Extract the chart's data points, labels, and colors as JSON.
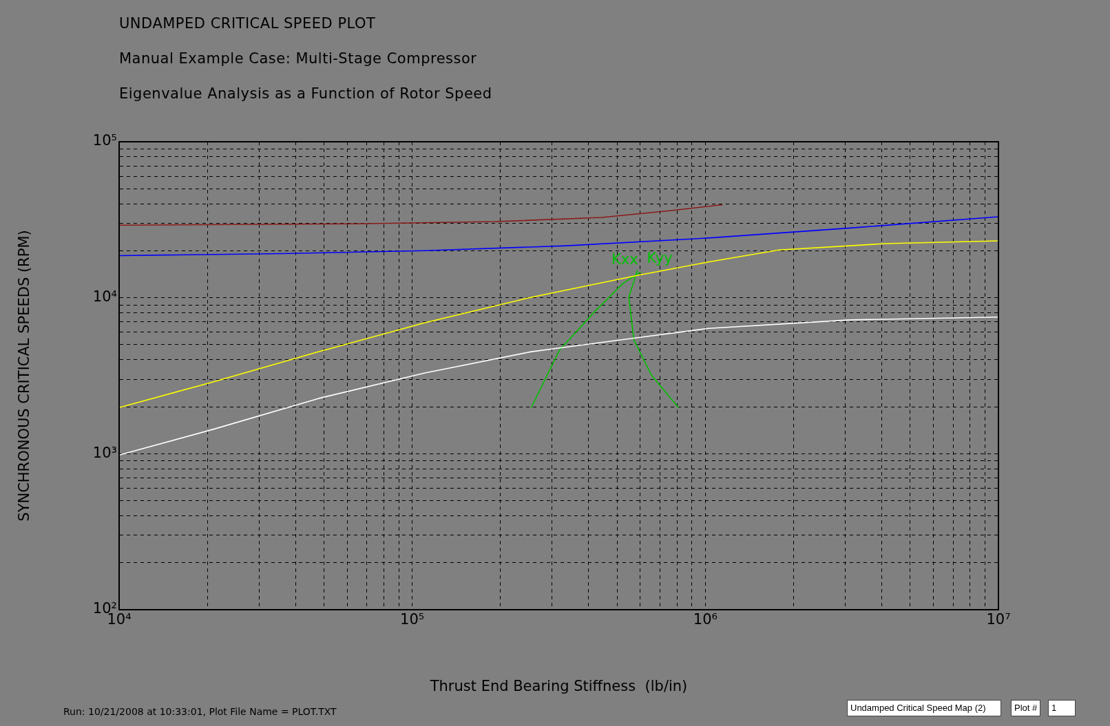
{
  "chart_data": {
    "type": "line",
    "title": "UNDAMPED CRITICAL SPEED PLOT",
    "subtitle": "Manual Example Case:  Multi-Stage Compressor\nEigenvalue Analysis as a Function of Rotor Speed",
    "xlabel": "Thrust End Bearing Stiffness  (lb/in)",
    "ylabel": "SYNCHRONOUS CRITICAL SPEEDS (RPM)",
    "log": "xy",
    "grid": true,
    "legend": false,
    "marker": "none",
    "line_style": "solid",
    "xlim": [
      10000,
      10000000
    ],
    "ylim": [
      100,
      100000
    ],
    "xticks": [
      {
        "value": 10000,
        "label": "10⁴"
      },
      {
        "value": 20000,
        "label": null
      },
      {
        "value": 30000,
        "label": null
      },
      {
        "value": 40000,
        "label": null
      },
      {
        "value": 50000,
        "label": null
      },
      {
        "value": 60000,
        "label": null
      },
      {
        "value": 70000,
        "label": null
      },
      {
        "value": 80000,
        "label": null
      },
      {
        "value": 90000,
        "label": null
      },
      {
        "value": 100000,
        "label": "10⁵"
      },
      {
        "value": 200000,
        "label": null
      },
      {
        "value": 300000,
        "label": null
      },
      {
        "value": 400000,
        "label": null
      },
      {
        "value": 500000,
        "label": null
      },
      {
        "value": 600000,
        "label": null
      },
      {
        "value": 700000,
        "label": null
      },
      {
        "value": 800000,
        "label": null
      },
      {
        "value": 900000,
        "label": null
      },
      {
        "value": 1000000,
        "label": "10⁶"
      },
      {
        "value": 2000000,
        "label": null
      },
      {
        "value": 3000000,
        "label": null
      },
      {
        "value": 4000000,
        "label": null
      },
      {
        "value": 5000000,
        "label": null
      },
      {
        "value": 6000000,
        "label": null
      },
      {
        "value": 7000000,
        "label": null
      },
      {
        "value": 8000000,
        "label": null
      },
      {
        "value": 9000000,
        "label": null
      },
      {
        "value": 10000000,
        "label": "10⁷"
      }
    ],
    "yticks": [
      {
        "value": 100,
        "label": "10²"
      },
      {
        "value": 200,
        "label": null
      },
      {
        "value": 300,
        "label": null
      },
      {
        "value": 400,
        "label": null
      },
      {
        "value": 500,
        "label": null
      },
      {
        "value": 600,
        "label": null
      },
      {
        "value": 700,
        "label": null
      },
      {
        "value": 800,
        "label": null
      },
      {
        "value": 900,
        "label": null
      },
      {
        "value": 1000,
        "label": "10³"
      },
      {
        "value": 2000,
        "label": null
      },
      {
        "value": 3000,
        "label": null
      },
      {
        "value": 4000,
        "label": null
      },
      {
        "value": 5000,
        "label": null
      },
      {
        "value": 6000,
        "label": null
      },
      {
        "value": 7000,
        "label": null
      },
      {
        "value": 8000,
        "label": null
      },
      {
        "value": 9000,
        "label": null
      },
      {
        "value": 10000,
        "label": "10⁴"
      },
      {
        "value": 20000,
        "label": null
      },
      {
        "value": 30000,
        "label": null
      },
      {
        "value": 40000,
        "label": null
      },
      {
        "value": 50000,
        "label": null
      },
      {
        "value": 60000,
        "label": null
      },
      {
        "value": 70000,
        "label": null
      },
      {
        "value": 80000,
        "label": null
      },
      {
        "value": 90000,
        "label": null
      },
      {
        "value": 100000,
        "label": "10⁵"
      }
    ],
    "series": [
      {
        "color": "#8b1a1a",
        "x": [
          10000,
          63400,
          192800,
          443600,
          774000,
          1143000
        ],
        "values": [
          29170,
          29780,
          30760,
          32700,
          36300,
          39470
        ]
      },
      {
        "color": "#0000ff",
        "x": [
          10000,
          36300,
          110400,
          336500,
          1023000,
          3112000,
          10000000
        ],
        "values": [
          18620,
          19200,
          20030,
          21550,
          24150,
          27990,
          33050
        ]
      },
      {
        "color": "#ffff00",
        "x": [
          10000,
          20840,
          48000,
          110400,
          254700,
          586000,
          1023000,
          1782000,
          4111000,
          10000000
        ],
        "values": [
          1977,
          2877,
          4508,
          6918,
          10070,
          13900,
          16950,
          20250,
          22230,
          23170
        ]
      },
      {
        "color": "#ffffff",
        "x": [
          10000,
          20840,
          48000,
          110400,
          254700,
          586000,
          1023000,
          3112000,
          10000000
        ],
        "values": [
          980,
          1430,
          2264,
          3296,
          4508,
          5546,
          6357,
          7211,
          7516
        ]
      },
      {
        "name": "Kxx",
        "color": "#00c000",
        "x": [
          254700,
          317600,
          419800,
          524800,
          602600
        ],
        "values": [
          1977,
          4602,
          8166,
          12390,
          14650
        ]
      },
      {
        "name": "Kyy",
        "color": "#00c000",
        "x": [
          586000,
          548300,
          570000,
          654600,
          809100
        ],
        "values": [
          14960,
          10070,
          5382,
          3193,
          1977
        ]
      }
    ],
    "annotations": [
      "Run: 10/21/2008 at 10:33:01, Plot File Name = PLOT.TXT",
      "Undamped Critical Speed Map (2)",
      "Plot #",
      "1"
    ]
  }
}
